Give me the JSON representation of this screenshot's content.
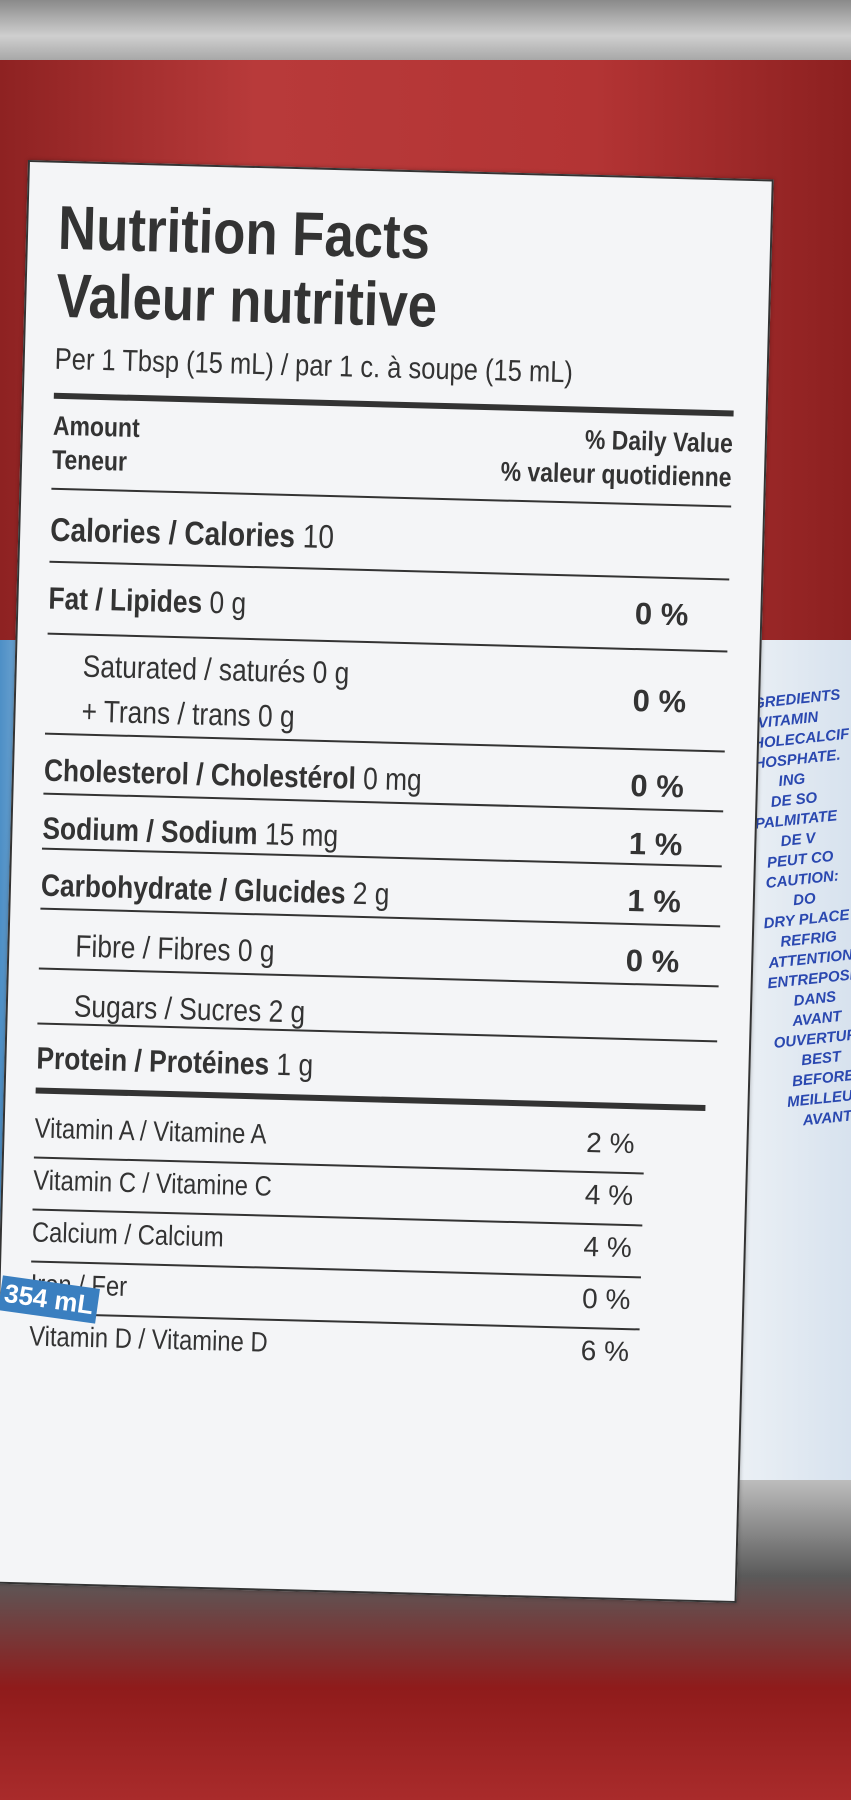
{
  "label": {
    "title_en": "Nutrition Facts",
    "title_fr": "Valeur nutritive",
    "serving": "Per 1 Tbsp (15 mL) / par 1 c. à soupe (15 mL)",
    "amount_en": "Amount",
    "amount_fr": "Teneur",
    "dv_en": "% Daily Value",
    "dv_fr": "% valeur quotidienne",
    "calories": "Calories / Calories",
    "calories_value": "10",
    "nutrients": [
      {
        "name": "Fat / Lipides",
        "amount": "0 g",
        "dv": "0 %"
      },
      {
        "name": "Saturated / saturés",
        "amount": "0 g",
        "name2": "+ Trans / trans",
        "amount2": "0 g",
        "dv": "0 %"
      },
      {
        "name": "Cholesterol / Cholestérol",
        "amount": "0 mg",
        "dv": "0 %"
      },
      {
        "name": "Sodium / Sodium",
        "amount": "15 mg",
        "dv": "1 %"
      },
      {
        "name": "Carbohydrate / Glucides",
        "amount": "2 g",
        "dv": "1 %"
      },
      {
        "name": "Fibre / Fibres",
        "amount": "0 g",
        "dv": "0 %"
      },
      {
        "name": "Sugars / Sucres",
        "amount": "2 g"
      },
      {
        "name": "Protein / Protéines",
        "amount": "1 g"
      }
    ],
    "vitamins": [
      {
        "name": "Vitamin A / Vitamine A",
        "dv": "2 %"
      },
      {
        "name": "Vitamin C / Vitamine C",
        "dv": "4 %"
      },
      {
        "name": "Calcium / Calcium",
        "dv": "4 %"
      },
      {
        "name": "Iron / Fer",
        "dv": "0 %"
      },
      {
        "name": "Vitamin D / Vitamine D",
        "dv": "6 %"
      }
    ]
  },
  "side_text": [
    "INGREDIENTS",
    "(VITAMIN",
    "CHOLECALCIF",
    "PHOSPHATE. ING",
    "DE SO",
    "PALMITATE DE V",
    "PEUT CO",
    "CAUTION: DO",
    "DRY PLACE",
    "REFRIG",
    "ATTENTION",
    "ENTREPOSER DANS",
    "AVANT OUVERTURE",
    "BEST BEFORE",
    "MEILLEUR AVANT"
  ],
  "volume": "354 mL",
  "colors": {
    "can_red": "#b33434",
    "ink": "#333333",
    "side_blue": "#2a48b0"
  }
}
